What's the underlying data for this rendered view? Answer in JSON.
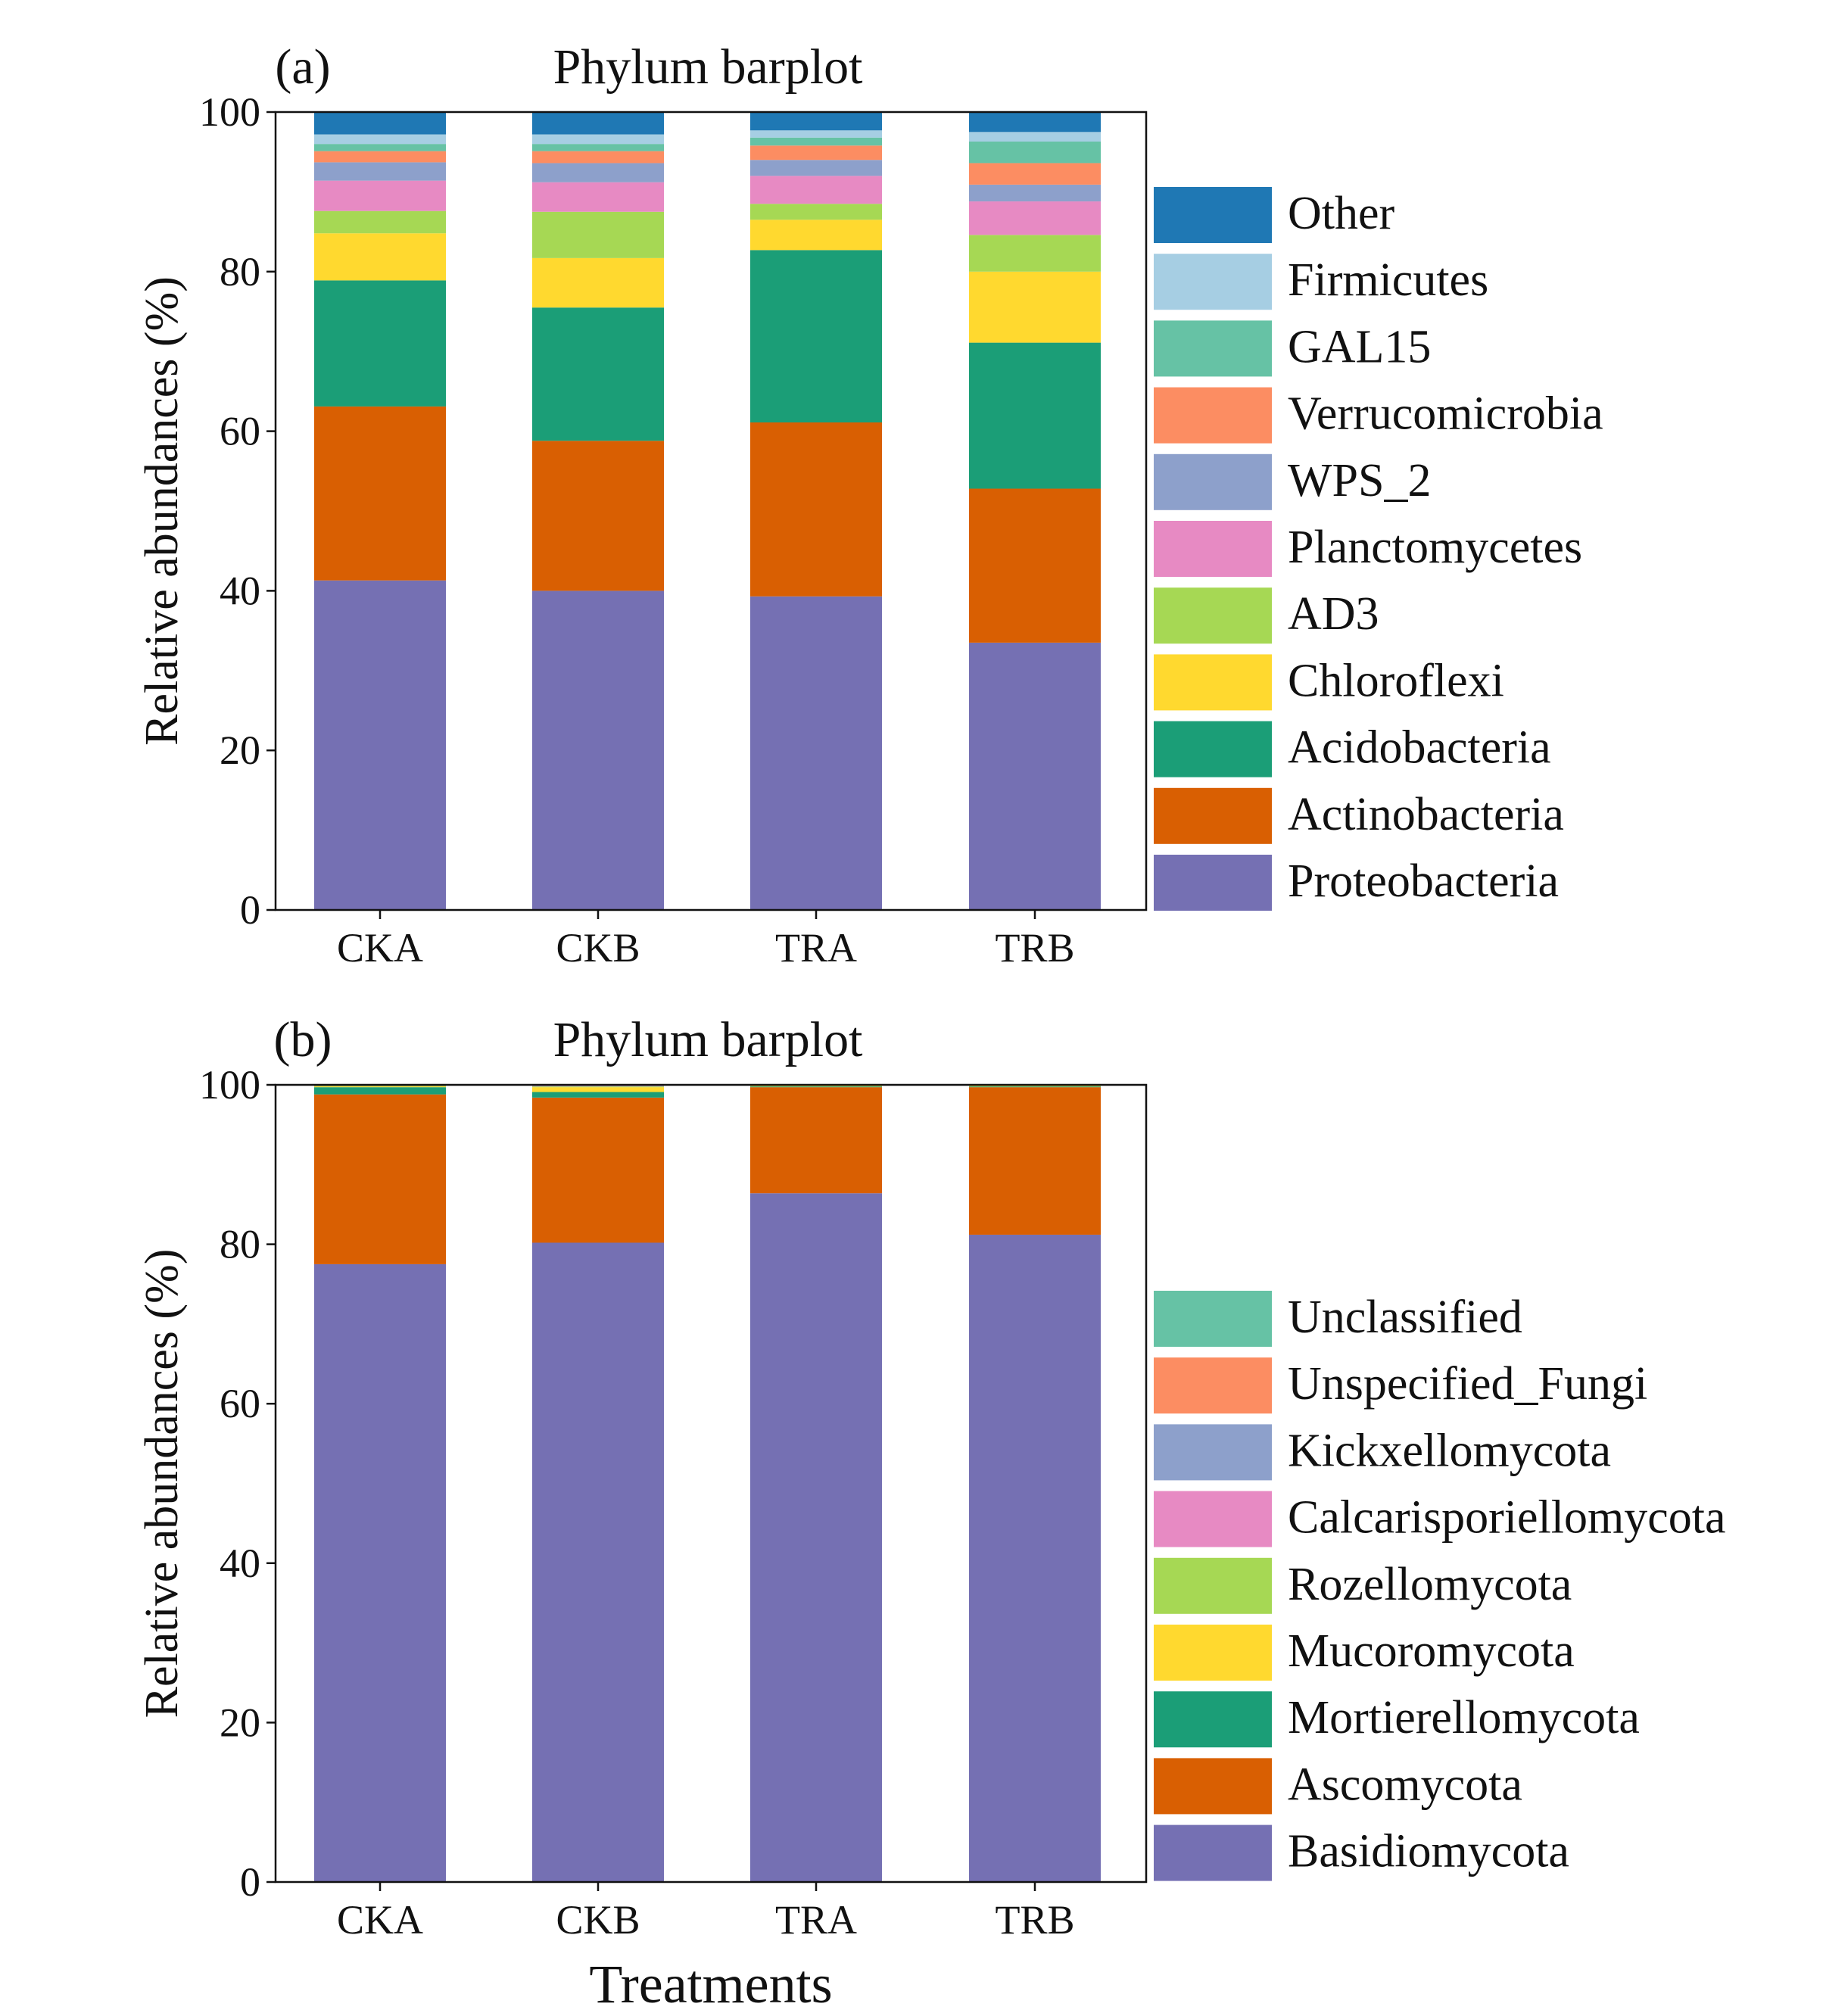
{
  "x_axis_title": "Treatments",
  "chart_data": [
    {
      "type": "bar",
      "stacked": true,
      "panel": "(a)",
      "title": "Phylum barplot",
      "ylabel": "Relative abundances (%)",
      "xlabel": "",
      "ylim": [
        0,
        100
      ],
      "yticks": [
        0,
        20,
        40,
        60,
        80,
        100
      ],
      "categories": [
        "CKA",
        "CKB",
        "TRA",
        "TRB"
      ],
      "series": [
        {
          "name": "Proteobacteria",
          "color": "#7570b3",
          "values": [
            41.3,
            40.0,
            39.3,
            33.5
          ]
        },
        {
          "name": "Actinobacteria",
          "color": "#d95f02",
          "values": [
            21.8,
            18.8,
            21.8,
            19.3
          ]
        },
        {
          "name": "Acidobacteria",
          "color": "#1b9e77",
          "values": [
            15.8,
            16.7,
            21.6,
            18.3
          ]
        },
        {
          "name": "Chloroflexi",
          "color": "#ffd92f",
          "values": [
            5.9,
            6.2,
            3.8,
            8.9
          ]
        },
        {
          "name": "AD3",
          "color": "#a6d854",
          "values": [
            2.8,
            5.8,
            2.0,
            4.6
          ]
        },
        {
          "name": "Planctomycetes",
          "color": "#e78ac3",
          "values": [
            3.8,
            3.7,
            3.5,
            4.2
          ]
        },
        {
          "name": "WPS_2",
          "color": "#8da0cb",
          "values": [
            2.3,
            2.4,
            2.0,
            2.1
          ]
        },
        {
          "name": "Verrucomicrobia",
          "color": "#fc8d62",
          "values": [
            1.4,
            1.5,
            1.8,
            2.7
          ]
        },
        {
          "name": "GAL15",
          "color": "#66c2a5",
          "values": [
            0.9,
            0.9,
            1.0,
            2.7
          ]
        },
        {
          "name": "Firmicutes",
          "color": "#a6cee3",
          "values": [
            1.2,
            1.2,
            0.9,
            1.2
          ]
        },
        {
          "name": "Other",
          "color": "#1f78b4",
          "values": [
            2.8,
            2.8,
            2.3,
            2.5
          ]
        }
      ]
    },
    {
      "type": "bar",
      "stacked": true,
      "panel": "(b)",
      "title": "Phylum barplot",
      "ylabel": "Relative abundances (%)",
      "xlabel": "Treatments",
      "ylim": [
        0,
        100
      ],
      "yticks": [
        0,
        20,
        40,
        60,
        80,
        100
      ],
      "categories": [
        "CKA",
        "CKB",
        "TRA",
        "TRB"
      ],
      "series": [
        {
          "name": "Basidiomycota",
          "color": "#7570b3",
          "values": [
            77.5,
            80.2,
            86.4,
            81.2
          ]
        },
        {
          "name": "Ascomycota",
          "color": "#d95f02",
          "values": [
            21.3,
            18.2,
            13.3,
            18.5
          ]
        },
        {
          "name": "Mortierellomycota",
          "color": "#1b9e77",
          "values": [
            0.9,
            0.7,
            0.1,
            0.1
          ]
        },
        {
          "name": "Mucoromycota",
          "color": "#ffd92f",
          "values": [
            0.1,
            0.6,
            0.1,
            0.1
          ]
        },
        {
          "name": "Rozellomycota",
          "color": "#a6d854",
          "values": [
            0.1,
            0.1,
            0.05,
            0.05
          ]
        },
        {
          "name": "Calcarisporiellomycota",
          "color": "#e78ac3",
          "values": [
            0.05,
            0.05,
            0.02,
            0.02
          ]
        },
        {
          "name": "Kickxellomycota",
          "color": "#8da0cb",
          "values": [
            0.02,
            0.05,
            0.02,
            0.02
          ]
        },
        {
          "name": "Unspecified_Fungi",
          "color": "#fc8d62",
          "values": [
            0.02,
            0.05,
            0.02,
            0.02
          ]
        },
        {
          "name": "Unclassified",
          "color": "#66c2a5",
          "values": [
            0.01,
            0.05,
            0.01,
            0.01
          ]
        }
      ]
    }
  ]
}
